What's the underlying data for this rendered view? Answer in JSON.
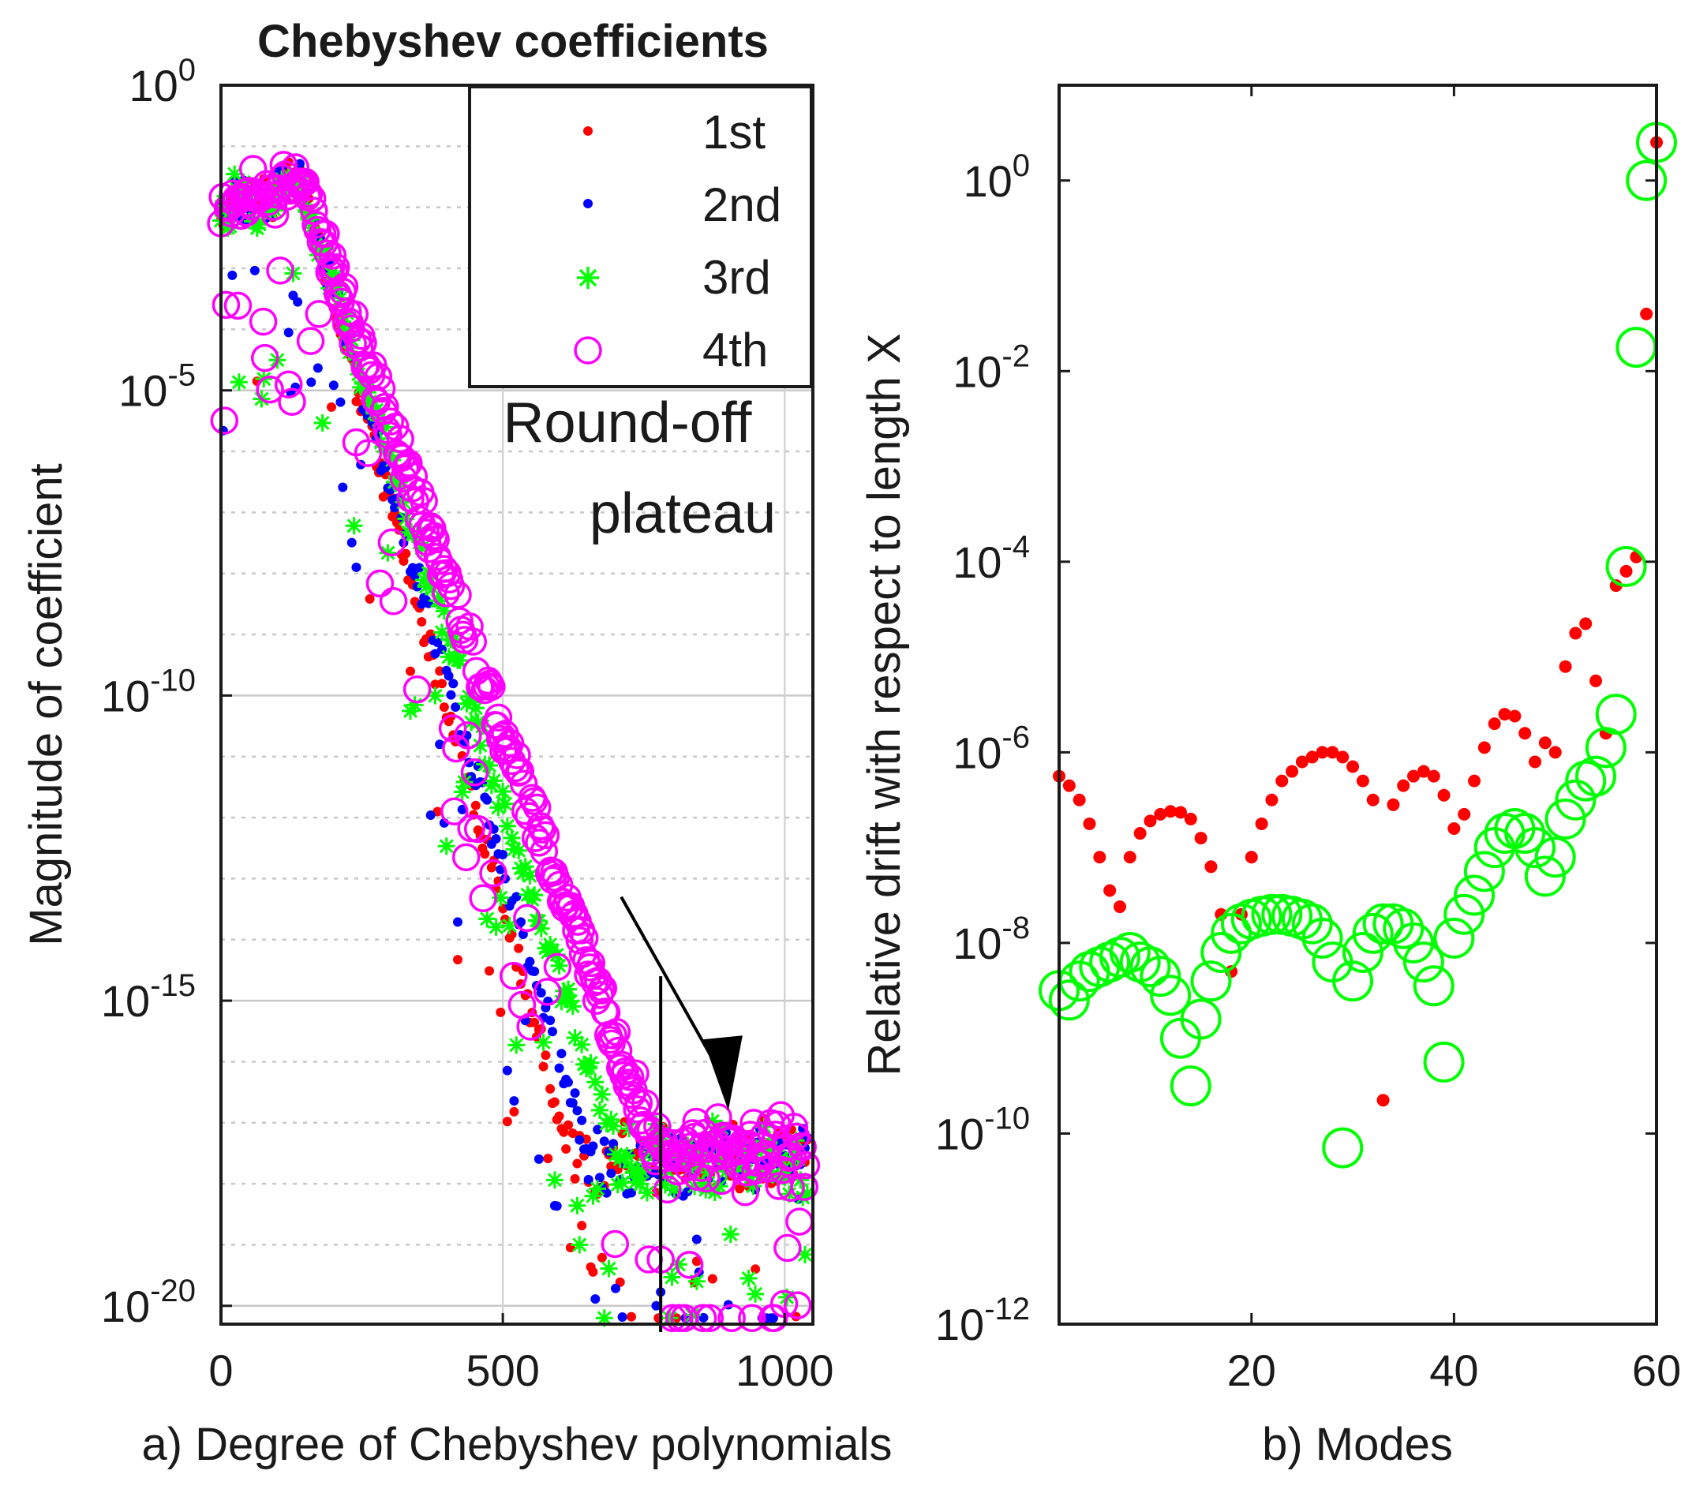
{
  "chart_data": [
    {
      "type": "scatter",
      "panel": "a",
      "title": "Chebyshev coefficients",
      "xlabel": "a) Degree of Chebyshev polynomials",
      "ylabel": "Magnitude of coefficient",
      "xlim": [
        0,
        1050
      ],
      "ylim_log10": [
        -20.3,
        0
      ],
      "yscale": "log",
      "grid": true,
      "xticks": [
        {
          "value": 0,
          "label": "0"
        },
        {
          "value": 500,
          "label": "500"
        },
        {
          "value": 1000,
          "label": "1000"
        }
      ],
      "yticks": [
        {
          "exp": 0,
          "base": "10",
          "sup": "0"
        },
        {
          "exp": -5,
          "base": "10",
          "sup": "-5"
        },
        {
          "exp": -10,
          "base": "10",
          "sup": "-10"
        },
        {
          "exp": -15,
          "base": "10",
          "sup": "-15"
        },
        {
          "exp": -20,
          "base": "10",
          "sup": "-20"
        }
      ],
      "legend": {
        "placement": "top-right",
        "entries": [
          {
            "label": "1st",
            "color": "#ff0000",
            "marker": "dot"
          },
          {
            "label": "2nd",
            "color": "#0000ff",
            "marker": "dot"
          },
          {
            "label": "3rd",
            "color": "#00ff00",
            "marker": "asterisk"
          },
          {
            "label": "4th",
            "color": "#ff00ff",
            "marker": "circle"
          }
        ]
      },
      "annotation": {
        "lines": [
          "Round-off",
          "plateau"
        ],
        "arrow_from": [
          710,
          -13.3
        ],
        "arrow_to": [
          900,
          -16.8
        ]
      },
      "vline_x": 780,
      "series_description": {
        "1st": {
          "peak_log10": -1.3,
          "decay_end_x": 620,
          "plateau_log10": -17.2
        },
        "2nd": {
          "peak_log10": -1.3,
          "decay_end_x": 650,
          "plateau_log10": -17.3
        },
        "3rd": {
          "peak_log10": -1.3,
          "decay_end_x": 700,
          "plateau_log10": -17.3
        },
        "4th": {
          "peak_log10": -1.3,
          "decay_end_x": 770,
          "plateau_log10": -17.2
        }
      }
    },
    {
      "type": "scatter",
      "panel": "b",
      "title": "",
      "xlabel": "b) Modes",
      "ylabel": "Relative drift with respect to length X",
      "xlim": [
        1,
        60
      ],
      "ylim_log10": [
        -12,
        1
      ],
      "yscale": "log",
      "grid": false,
      "xticks": [
        {
          "value": 20,
          "label": "20"
        },
        {
          "value": 40,
          "label": "40"
        },
        {
          "value": 60,
          "label": "60"
        }
      ],
      "yticks": [
        {
          "exp": 0,
          "base": "10",
          "sup": "0"
        },
        {
          "exp": -2,
          "base": "10",
          "sup": "-2"
        },
        {
          "exp": -4,
          "base": "10",
          "sup": "-4"
        },
        {
          "exp": -6,
          "base": "10",
          "sup": "-6"
        },
        {
          "exp": -8,
          "base": "10",
          "sup": "-8"
        },
        {
          "exp": -10,
          "base": "10",
          "sup": "-10"
        },
        {
          "exp": -12,
          "base": "10",
          "sup": "-12"
        }
      ],
      "series": [
        {
          "name": "red dots",
          "color": "#ff0000",
          "marker": "dot",
          "x": [
            1,
            2,
            3,
            4,
            5,
            6,
            7,
            8,
            9,
            10,
            11,
            12,
            13,
            14,
            15,
            16,
            17,
            18,
            19,
            20,
            21,
            22,
            23,
            24,
            25,
            26,
            27,
            28,
            29,
            30,
            31,
            32,
            33,
            34,
            35,
            36,
            37,
            38,
            39,
            40,
            41,
            42,
            43,
            44,
            45,
            46,
            47,
            48,
            49,
            50,
            51,
            52,
            53,
            54,
            55,
            56,
            57,
            58,
            59,
            60
          ],
          "log10_values": [
            -6.25,
            -6.35,
            -6.5,
            -6.75,
            -7.1,
            -7.45,
            -7.62,
            -7.1,
            -6.85,
            -6.72,
            -6.65,
            -6.62,
            -6.63,
            -6.7,
            -6.9,
            -7.2,
            -7.7,
            -8.3,
            -7.7,
            -7.1,
            -6.75,
            -6.5,
            -6.3,
            -6.2,
            -6.1,
            -6.05,
            -6.0,
            -6.0,
            -6.05,
            -6.15,
            -6.3,
            -6.5,
            -9.65,
            -6.55,
            -6.35,
            -6.25,
            -6.2,
            -6.25,
            -6.45,
            -6.8,
            -6.65,
            -6.3,
            -5.95,
            -5.7,
            -5.6,
            -5.62,
            -5.8,
            -6.1,
            -5.9,
            -6.0,
            -5.1,
            -4.75,
            -4.65,
            -5.25,
            -5.8,
            -4.25,
            -4.1,
            -3.95,
            -1.4,
            0.4
          ],
          "note": "some red points sit at x 56-60 above trend"
        },
        {
          "name": "green circles",
          "color": "#00ff00",
          "marker": "circle",
          "x": [
            1,
            2,
            3,
            4,
            5,
            6,
            7,
            8,
            9,
            10,
            11,
            12,
            13,
            14,
            15,
            16,
            17,
            18,
            19,
            20,
            21,
            22,
            23,
            24,
            25,
            26,
            27,
            28,
            29,
            30,
            31,
            32,
            33,
            34,
            35,
            36,
            37,
            38,
            39,
            40,
            41,
            42,
            43,
            44,
            45,
            46,
            47,
            48,
            49,
            50,
            51,
            52,
            53,
            54,
            55,
            56,
            57,
            58,
            59,
            60
          ],
          "log10_values": [
            -8.5,
            -8.6,
            -8.4,
            -8.3,
            -8.25,
            -8.2,
            -8.15,
            -8.1,
            -8.2,
            -8.25,
            -8.35,
            -8.55,
            -9.0,
            -9.5,
            -8.8,
            -8.4,
            -8.1,
            -7.9,
            -7.8,
            -7.75,
            -7.72,
            -7.7,
            -7.7,
            -7.72,
            -7.75,
            -7.8,
            -7.95,
            -8.2,
            -10.15,
            -8.4,
            -8.1,
            -7.9,
            -7.8,
            -7.8,
            -7.85,
            -8.0,
            -8.2,
            -8.45,
            -9.25,
            -7.95,
            -7.7,
            -7.5,
            -7.25,
            -7.0,
            -6.85,
            -6.8,
            -6.85,
            -7.0,
            -7.3,
            -7.1,
            -6.7,
            -6.5,
            -6.3,
            -6.25,
            -5.95,
            -5.6,
            -4.05,
            -1.75,
            0.0,
            0.4
          ],
          "extra_points": [
            {
              "x": 57,
              "log10": -4.05
            },
            {
              "x": 58,
              "log10": -1.75
            },
            {
              "x": 59,
              "log10": 0.0
            },
            {
              "x": 60,
              "log10": 0.4
            }
          ]
        }
      ]
    }
  ]
}
